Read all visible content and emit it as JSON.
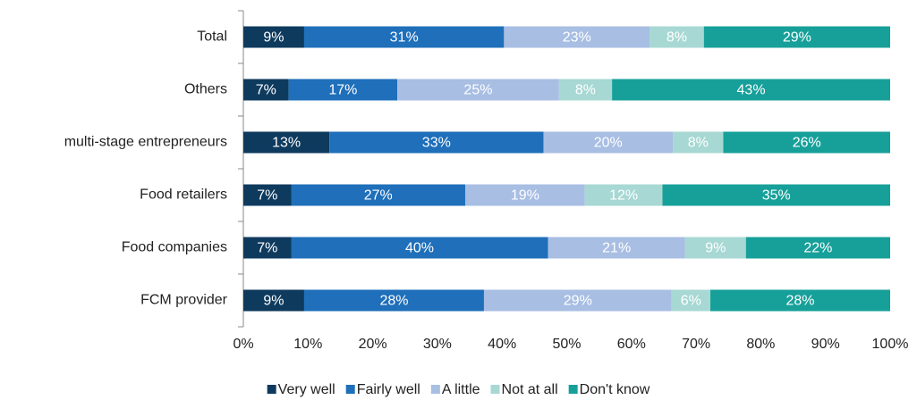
{
  "chart_data": {
    "type": "stacked-barh",
    "categories": [
      "Total",
      "Others",
      "multi-stage entrepreneurs",
      "Food retailers",
      "Food companies",
      "FCM provider"
    ],
    "series": [
      {
        "name": "Very well",
        "color": "#0e3a5e",
        "values": [
          9.4,
          7,
          13.3,
          7.4,
          7.4,
          9.4
        ],
        "value_labels": [
          "9%",
          "7%",
          "13%",
          "7%",
          "7%",
          "9%"
        ]
      },
      {
        "name": "Fairly well",
        "color": "#1f6fba",
        "values": [
          30.9,
          16.8,
          33.1,
          26.9,
          39.7,
          27.8
        ],
        "value_labels": [
          "31%",
          "17%",
          "33%",
          "27%",
          "40%",
          "28%"
        ]
      },
      {
        "name": "A little",
        "color": "#a8bee3",
        "values": [
          22.5,
          25,
          20,
          18.5,
          21.2,
          29
        ],
        "value_labels": [
          "23%",
          "25%",
          "20%",
          "19%",
          "21%",
          "29%"
        ]
      },
      {
        "name": "Not at all",
        "color": "#a7d8d3",
        "values": [
          8.4,
          8.2,
          7.8,
          12,
          9.4,
          6
        ],
        "value_labels": [
          "8%",
          "8%",
          "8%",
          "12%",
          "9%",
          "6%"
        ]
      },
      {
        "name": "Don't know",
        "color": "#17a09a",
        "values": [
          28.8,
          43,
          25.8,
          35.2,
          22.3,
          27.8
        ],
        "value_labels": [
          "29%",
          "43%",
          "26%",
          "35%",
          "22%",
          "28%"
        ]
      }
    ],
    "xlim": [
      0,
      100
    ],
    "xticks": [
      {
        "value": 0,
        "label": "0%"
      },
      {
        "value": 10,
        "label": "10%"
      },
      {
        "value": 20,
        "label": "20%"
      },
      {
        "value": 30,
        "label": "30%"
      },
      {
        "value": 40,
        "label": "40%"
      },
      {
        "value": 50,
        "label": "50%"
      },
      {
        "value": 60,
        "label": "60%"
      },
      {
        "value": 70,
        "label": "70%"
      },
      {
        "value": 80,
        "label": "80%"
      },
      {
        "value": 90,
        "label": "90%"
      },
      {
        "value": 100,
        "label": "100%"
      }
    ],
    "legend": "bottom"
  }
}
